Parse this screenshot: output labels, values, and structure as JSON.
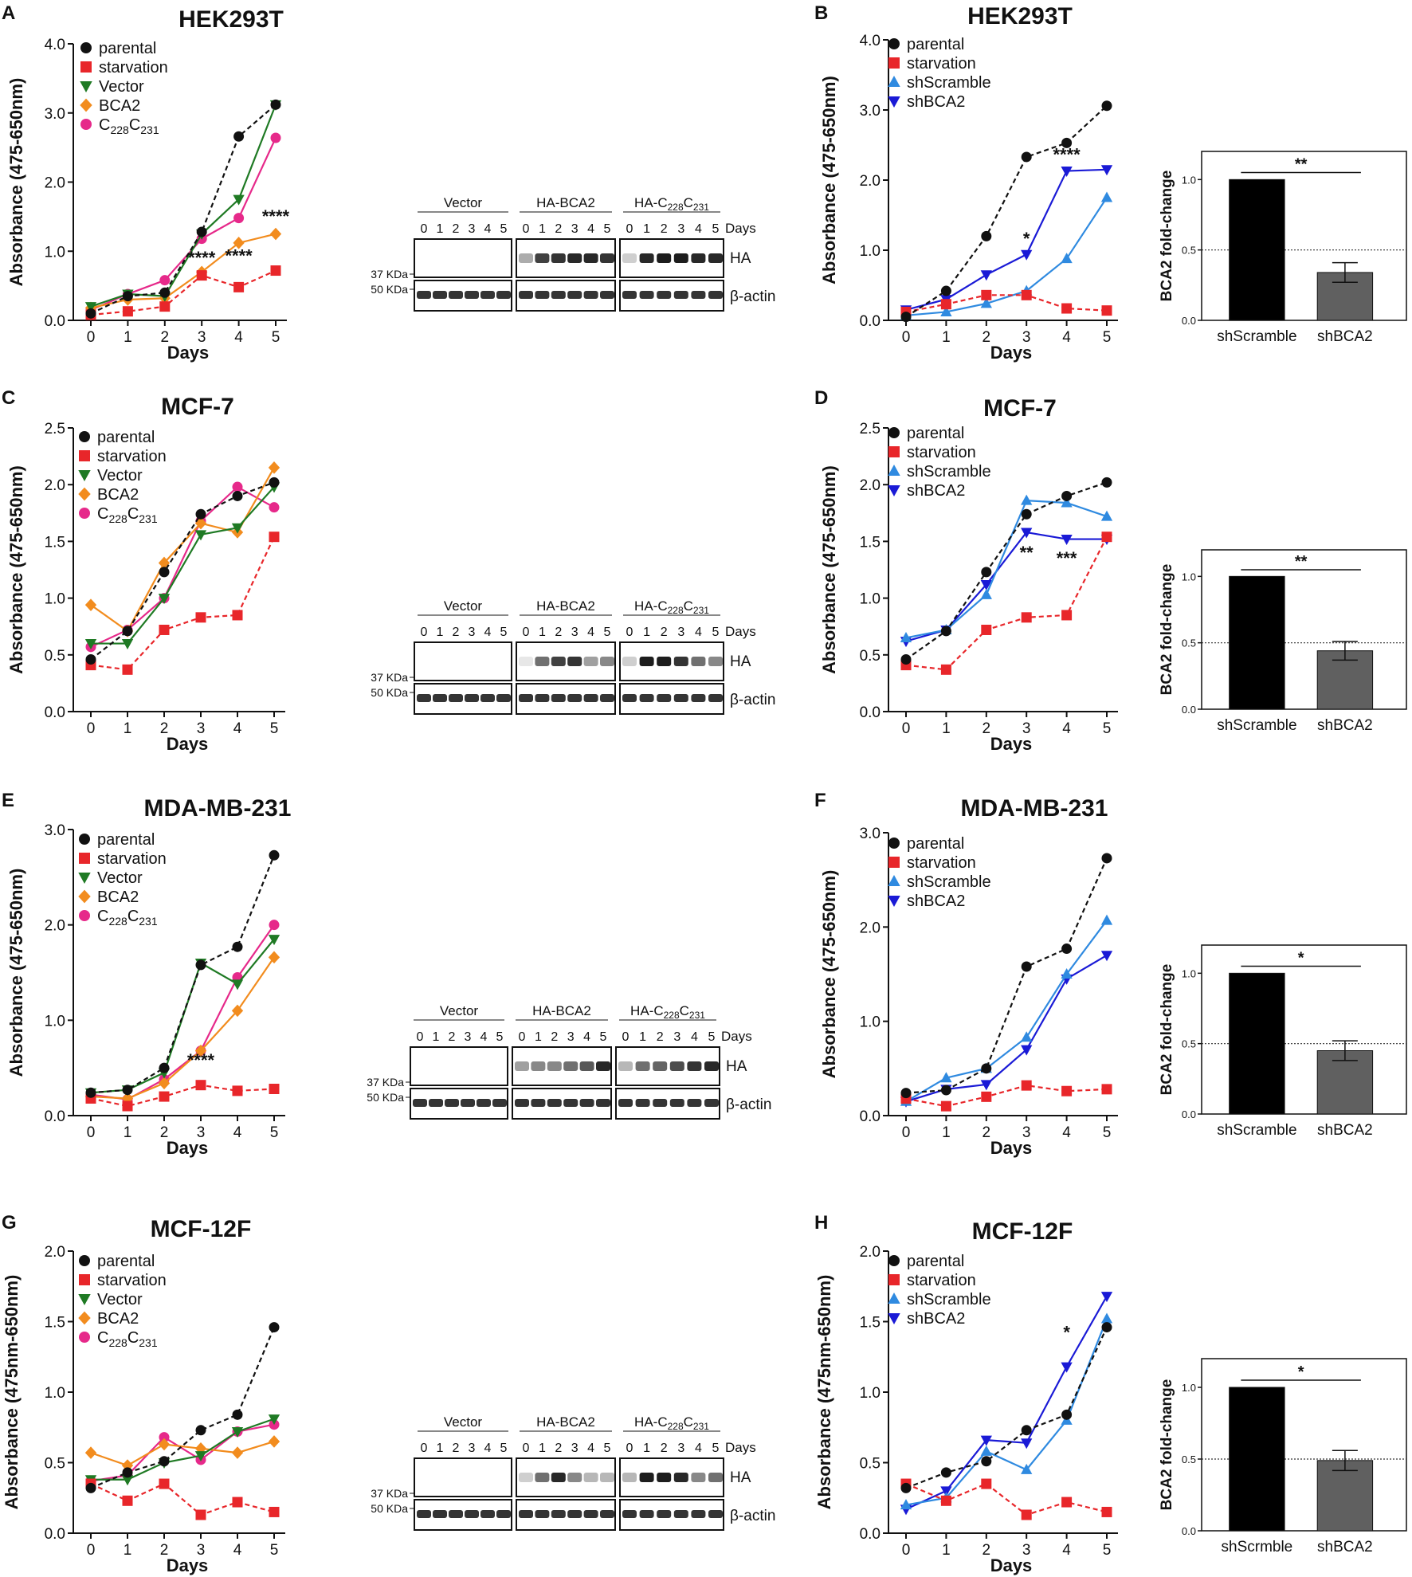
{
  "figure": {
    "days_label": "Days",
    "blot_days": "Days",
    "blot_days_ticks": [
      "0",
      "1",
      "2",
      "3",
      "4",
      "5"
    ],
    "kda37": "37 KDa",
    "kda50": "50 KDa",
    "ha_label": "HA",
    "actin_label": "β-actin",
    "fold_change_label": "BCA2 fold-change",
    "c_variant_main": "C",
    "c_variant_sub1": "228",
    "c_variant_sub2": "231",
    "ha_c_prefix": "HA-C"
  },
  "colors": {
    "parental": "#111111",
    "starvation": "#e8262a",
    "vector": "#1f7a24",
    "bca2": "#f28c1e",
    "c228c231": "#e6298a",
    "shscramble": "#2f8ae0",
    "shbca2": "#1a1ad6",
    "bar_scramble": "#000000",
    "bar_bca2": "#606060"
  },
  "chart_data": [
    {
      "panel": "A",
      "type": "line",
      "title": "HEK293T",
      "xlabel": "Days",
      "ylabel": "Absorbance (475-650nm)",
      "x": [
        0,
        1,
        2,
        3,
        4,
        5
      ],
      "ylim": [
        0,
        4.0
      ],
      "yticks": [
        "0.0",
        "1.0",
        "2.0",
        "3.0",
        "4.0"
      ],
      "series": [
        {
          "name": "parental",
          "key": "parental",
          "values": [
            0.1,
            0.35,
            0.4,
            1.28,
            2.66,
            3.12
          ]
        },
        {
          "name": "starvation",
          "key": "starvation",
          "values": [
            0.08,
            0.13,
            0.2,
            0.65,
            0.48,
            0.72
          ]
        },
        {
          "name": "Vector",
          "key": "vector",
          "values": [
            0.2,
            0.38,
            0.35,
            1.25,
            1.75,
            3.12
          ]
        },
        {
          "name": "BCA2",
          "key": "bca2",
          "values": [
            0.18,
            0.3,
            0.32,
            0.7,
            1.12,
            1.25
          ]
        },
        {
          "name": "C228C231",
          "key": "c228c231",
          "values": [
            0.15,
            0.38,
            0.58,
            1.18,
            1.48,
            2.64
          ]
        }
      ],
      "annotations": [
        {
          "x": 3,
          "y": 0.82,
          "text": "****"
        },
        {
          "x": 4,
          "y": 0.85,
          "text": "****"
        },
        {
          "x": 5,
          "y": 1.42,
          "text": "****"
        }
      ]
    },
    {
      "panel": "B",
      "type": "line",
      "title": "HEK293T",
      "xlabel": "Days",
      "ylabel": "Absorbance (475-650nm)",
      "x": [
        0,
        1,
        2,
        3,
        4,
        5
      ],
      "ylim": [
        0,
        4.0
      ],
      "yticks": [
        "0.0",
        "1.0",
        "2.0",
        "3.0",
        "4.0"
      ],
      "series": [
        {
          "name": "parental",
          "key": "parental",
          "values": [
            0.05,
            0.42,
            1.2,
            2.33,
            2.53,
            3.06
          ]
        },
        {
          "name": "starvation",
          "key": "starvation",
          "values": [
            0.12,
            0.23,
            0.36,
            0.36,
            0.17,
            0.14
          ]
        },
        {
          "name": "shScramble",
          "key": "shscramble",
          "values": [
            0.07,
            0.12,
            0.24,
            0.42,
            0.88,
            1.75
          ]
        },
        {
          "name": "shBCA2",
          "key": "shbca2",
          "values": [
            0.15,
            0.3,
            0.65,
            0.94,
            2.13,
            2.15
          ]
        }
      ],
      "annotations": [
        {
          "x": 3,
          "y": 1.08,
          "text": "*"
        },
        {
          "x": 4,
          "y": 2.28,
          "text": "****"
        }
      ]
    },
    {
      "panel": "B-bar",
      "type": "bar",
      "ylabel": "BCA2 fold-change",
      "categories": [
        "shScramble",
        "shBCA2"
      ],
      "values": [
        1.0,
        0.34
      ],
      "ylim": [
        0,
        1.2
      ],
      "yticks": [
        "0.0",
        "0.5",
        "1.0"
      ],
      "significance": "**"
    },
    {
      "panel": "C",
      "type": "line",
      "title": "MCF-7",
      "xlabel": "Days",
      "ylabel": "Absorbance (475-650nm)",
      "x": [
        0,
        1,
        2,
        3,
        4,
        5
      ],
      "ylim": [
        0,
        2.5
      ],
      "yticks": [
        "0.0",
        "0.5",
        "1.0",
        "1.5",
        "2.0",
        "2.5"
      ],
      "series": [
        {
          "name": "parental",
          "key": "parental",
          "values": [
            0.46,
            0.71,
            1.23,
            1.74,
            1.9,
            2.02
          ]
        },
        {
          "name": "starvation",
          "key": "starvation",
          "values": [
            0.41,
            0.37,
            0.72,
            0.83,
            0.85,
            1.54
          ]
        },
        {
          "name": "Vector",
          "key": "vector",
          "values": [
            0.6,
            0.6,
            1.0,
            1.56,
            1.62,
            1.98
          ]
        },
        {
          "name": "BCA2",
          "key": "bca2",
          "values": [
            0.94,
            0.71,
            1.31,
            1.66,
            1.58,
            2.15
          ]
        },
        {
          "name": "C228C231",
          "key": "c228c231",
          "values": [
            0.57,
            0.72,
            1.0,
            1.68,
            1.98,
            1.8
          ]
        }
      ],
      "annotations": []
    },
    {
      "panel": "D",
      "type": "line",
      "title": "MCF-7",
      "xlabel": "Days",
      "ylabel": "Absorbance (475-650nm)",
      "x": [
        0,
        1,
        2,
        3,
        4,
        5
      ],
      "ylim": [
        0,
        2.5
      ],
      "yticks": [
        "0.0",
        "0.5",
        "1.0",
        "1.5",
        "2.0",
        "2.5"
      ],
      "series": [
        {
          "name": "parental",
          "key": "parental",
          "values": [
            0.46,
            0.71,
            1.23,
            1.74,
            1.9,
            2.02
          ]
        },
        {
          "name": "starvation",
          "key": "starvation",
          "values": [
            0.41,
            0.37,
            0.72,
            0.83,
            0.85,
            1.54
          ]
        },
        {
          "name": "shScramble",
          "key": "shscramble",
          "values": [
            0.65,
            0.72,
            1.03,
            1.86,
            1.84,
            1.72
          ]
        },
        {
          "name": "shBCA2",
          "key": "shbca2",
          "values": [
            0.62,
            0.72,
            1.12,
            1.58,
            1.52,
            1.52
          ]
        }
      ],
      "annotations": [
        {
          "x": 3,
          "y": 1.35,
          "text": "**"
        },
        {
          "x": 4,
          "y": 1.3,
          "text": "***"
        }
      ]
    },
    {
      "panel": "D-bar",
      "type": "bar",
      "ylabel": "BCA2 fold-change",
      "categories": [
        "shScramble",
        "shBCA2"
      ],
      "values": [
        1.0,
        0.44
      ],
      "ylim": [
        0,
        1.2
      ],
      "yticks": [
        "0.0",
        "0.5",
        "1.0"
      ],
      "significance": "**"
    },
    {
      "panel": "E",
      "type": "line",
      "title": "MDA-MB-231",
      "xlabel": "Days",
      "ylabel": "Absorbance (475-650nm)",
      "x": [
        0,
        1,
        2,
        3,
        4,
        5
      ],
      "ylim": [
        0,
        3.0
      ],
      "yticks": [
        "0.0",
        "1.0",
        "2.0",
        "3.0"
      ],
      "series": [
        {
          "name": "parental",
          "key": "parental",
          "values": [
            0.24,
            0.27,
            0.5,
            1.58,
            1.77,
            2.73
          ]
        },
        {
          "name": "starvation",
          "key": "starvation",
          "values": [
            0.18,
            0.1,
            0.2,
            0.32,
            0.26,
            0.28
          ]
        },
        {
          "name": "Vector",
          "key": "vector",
          "values": [
            0.24,
            0.27,
            0.45,
            1.6,
            1.38,
            1.85
          ]
        },
        {
          "name": "BCA2",
          "key": "bca2",
          "values": [
            0.2,
            0.18,
            0.34,
            0.68,
            1.1,
            1.66
          ]
        },
        {
          "name": "C228C231",
          "key": "c228c231",
          "values": [
            0.22,
            0.17,
            0.38,
            0.68,
            1.45,
            2.0
          ]
        }
      ],
      "annotations": [
        {
          "x": 3,
          "y": 0.52,
          "text": "****"
        }
      ]
    },
    {
      "panel": "F",
      "type": "line",
      "title": "MDA-MB-231",
      "xlabel": "Days",
      "ylabel": "Absorbance (475-650nm)",
      "x": [
        0,
        1,
        2,
        3,
        4,
        5
      ],
      "ylim": [
        0,
        3.0
      ],
      "yticks": [
        "0.0",
        "1.0",
        "2.0",
        "3.0"
      ],
      "series": [
        {
          "name": "parental",
          "key": "parental",
          "values": [
            0.24,
            0.27,
            0.5,
            1.58,
            1.77,
            2.73
          ]
        },
        {
          "name": "starvation",
          "key": "starvation",
          "values": [
            0.18,
            0.1,
            0.2,
            0.32,
            0.26,
            0.28
          ]
        },
        {
          "name": "shScramble",
          "key": "shscramble",
          "values": [
            0.15,
            0.4,
            0.5,
            0.83,
            1.5,
            2.07
          ]
        },
        {
          "name": "shBCA2",
          "key": "shbca2",
          "values": [
            0.15,
            0.28,
            0.33,
            0.7,
            1.45,
            1.7
          ]
        }
      ],
      "annotations": []
    },
    {
      "panel": "F-bar",
      "type": "bar",
      "ylabel": "BCA2 fold-change",
      "categories": [
        "shScramble",
        "shBCA2"
      ],
      "values": [
        1.0,
        0.45
      ],
      "ylim": [
        0,
        1.2
      ],
      "yticks": [
        "0.0",
        "0.5",
        "1.0"
      ],
      "significance": "*"
    },
    {
      "panel": "G",
      "type": "line",
      "title": "MCF-12F",
      "xlabel": "Days",
      "ylabel": "Absorbance (475nm-650nm)",
      "x": [
        0,
        1,
        2,
        3,
        4,
        5
      ],
      "ylim": [
        0,
        2.0
      ],
      "yticks": [
        "0.0",
        "0.5",
        "1.0",
        "1.5",
        "2.0"
      ],
      "series": [
        {
          "name": "parental",
          "key": "parental",
          "values": [
            0.32,
            0.43,
            0.51,
            0.73,
            0.84,
            1.46
          ]
        },
        {
          "name": "starvation",
          "key": "starvation",
          "values": [
            0.35,
            0.23,
            0.35,
            0.13,
            0.22,
            0.15
          ]
        },
        {
          "name": "Vector",
          "key": "vector",
          "values": [
            0.38,
            0.38,
            0.5,
            0.55,
            0.72,
            0.81
          ]
        },
        {
          "name": "BCA2",
          "key": "bca2",
          "values": [
            0.57,
            0.48,
            0.63,
            0.6,
            0.57,
            0.65
          ]
        },
        {
          "name": "C228C231",
          "key": "c228c231",
          "values": [
            0.37,
            0.41,
            0.68,
            0.52,
            0.72,
            0.77
          ]
        }
      ],
      "annotations": []
    },
    {
      "panel": "H",
      "type": "line",
      "title": "MCF-12F",
      "xlabel": "Days",
      "ylabel": "Absorbance (475nm-650nm)",
      "x": [
        0,
        1,
        2,
        3,
        4,
        5
      ],
      "ylim": [
        0,
        2.0
      ],
      "yticks": [
        "0.0",
        "0.5",
        "1.0",
        "1.5",
        "2.0"
      ],
      "series": [
        {
          "name": "parental",
          "key": "parental",
          "values": [
            0.32,
            0.43,
            0.51,
            0.73,
            0.84,
            1.46
          ]
        },
        {
          "name": "starvation",
          "key": "starvation",
          "values": [
            0.35,
            0.23,
            0.35,
            0.13,
            0.22,
            0.15
          ]
        },
        {
          "name": "shScramble",
          "key": "shscramble",
          "values": [
            0.2,
            0.25,
            0.58,
            0.45,
            0.8,
            1.52
          ]
        },
        {
          "name": "shBCA2",
          "key": "shbca2",
          "values": [
            0.17,
            0.3,
            0.66,
            0.64,
            1.18,
            1.68
          ]
        }
      ],
      "annotations": [
        {
          "x": 4,
          "y": 1.38,
          "text": "*"
        }
      ]
    },
    {
      "panel": "H-bar",
      "type": "bar",
      "ylabel": "BCA2 fold-change",
      "categories": [
        "shScrmble",
        "shBCA2"
      ],
      "values": [
        1.0,
        0.49
      ],
      "ylim": [
        0,
        1.2
      ],
      "yticks": [
        "0.0",
        "0.5",
        "1.0"
      ],
      "significance": "*"
    }
  ],
  "blots": [
    {
      "panel": "A",
      "vector": "Vector",
      "habca2": "HA-BCA2"
    },
    {
      "panel": "C",
      "vector": "Vector",
      "habca2": "HA-BCA2"
    },
    {
      "panel": "E",
      "vector": "Vector",
      "habca2": "HA-BCA2"
    },
    {
      "panel": "G",
      "vector": "Vector",
      "habca2": "HA-BCA2"
    }
  ]
}
